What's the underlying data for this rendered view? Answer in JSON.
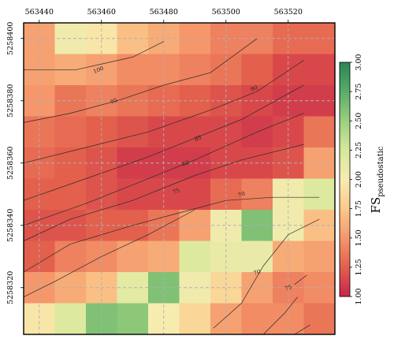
{
  "chart_data": {
    "type": "heatmap",
    "title": "",
    "xlabel": "",
    "ylabel": "",
    "x_ticks": [
      "563440",
      "563460",
      "563480",
      "563500",
      "563520"
    ],
    "x_tick_values": [
      563440,
      563460,
      563480,
      563500,
      563520
    ],
    "y_ticks": [
      "5258320",
      "5258340",
      "5258360",
      "5258380",
      "5258400"
    ],
    "y_tick_values": [
      5258320,
      5258340,
      5258360,
      5258380,
      5258400
    ],
    "xlim": [
      563435,
      563535
    ],
    "ylim": [
      5258305,
      5258405
    ],
    "cell_x_edges": [
      563435,
      563445,
      563455,
      563465,
      563475,
      563485,
      563495,
      563505,
      563515,
      563525,
      563535
    ],
    "cell_y_edges": [
      5258405,
      5258395,
      5258385,
      5258375,
      5258365,
      5258355,
      5258345,
      5258335,
      5258325,
      5258315,
      5258305
    ],
    "grid": true,
    "colorbar": {
      "label": "FS",
      "label_subscript": "pseudostatic",
      "range": [
        1.0,
        3.0
      ],
      "ticks": [
        "1.00",
        "1.25",
        "1.50",
        "1.75",
        "2.00",
        "2.25",
        "2.50",
        "2.75",
        "3.00"
      ],
      "colormap": [
        "#c7254a",
        "#e3604c",
        "#f5976b",
        "#fbc98a",
        "#f7ecb0",
        "#d6e89b",
        "#9bcf7d",
        "#57ad6a",
        "#2a8556"
      ]
    },
    "values": [
      [
        1.55,
        2.05,
        1.95,
        1.7,
        1.6,
        1.5,
        1.4,
        1.4,
        1.3,
        1.3
      ],
      [
        1.55,
        1.6,
        1.55,
        1.45,
        1.45,
        1.4,
        1.35,
        1.25,
        1.15,
        1.15
      ],
      [
        1.5,
        1.35,
        1.4,
        1.35,
        1.3,
        1.25,
        1.2,
        1.15,
        1.1,
        1.1
      ],
      [
        1.35,
        1.3,
        1.25,
        1.2,
        1.15,
        1.15,
        1.15,
        1.1,
        1.15,
        1.35
      ],
      [
        1.3,
        1.25,
        1.2,
        1.1,
        1.1,
        1.1,
        1.15,
        1.15,
        1.2,
        1.55
      ],
      [
        1.25,
        1.25,
        1.2,
        1.15,
        1.15,
        1.15,
        1.3,
        1.4,
        2.05,
        2.2
      ],
      [
        1.2,
        1.2,
        1.25,
        1.25,
        1.35,
        1.55,
        2.05,
        2.6,
        2.05,
        1.7
      ],
      [
        1.25,
        1.4,
        1.45,
        1.55,
        1.6,
        2.2,
        2.1,
        2.1,
        1.6,
        1.55
      ],
      [
        1.5,
        1.6,
        1.7,
        2.15,
        2.6,
        2.05,
        1.85,
        1.55,
        1.4,
        1.45
      ],
      [
        1.95,
        2.2,
        2.6,
        2.55,
        2.0,
        1.85,
        1.55,
        1.45,
        1.45,
        1.35
      ]
    ],
    "contours": [
      {
        "label": "100",
        "points": [
          [
            563435,
            5258390
          ],
          [
            563452,
            5258390
          ],
          [
            563470,
            5258394
          ],
          [
            563480,
            5258399
          ]
        ],
        "label_at": [
          563459,
          5258390
        ]
      },
      {
        "label": "95",
        "points": [
          [
            563435,
            5258373
          ],
          [
            563450,
            5258376
          ],
          [
            563465,
            5258380
          ],
          [
            563480,
            5258385
          ],
          [
            563495,
            5258389
          ],
          [
            563510,
            5258400
          ]
        ],
        "label_at": [
          563464,
          5258380
        ]
      },
      {
        "label": "90",
        "points": [
          [
            563435,
            5258360
          ],
          [
            563455,
            5258365
          ],
          [
            563475,
            5258370
          ],
          [
            563495,
            5258377
          ],
          [
            563510,
            5258383
          ],
          [
            563525,
            5258393
          ]
        ],
        "label_at": [
          563509,
          5258384
        ]
      },
      {
        "label": "85",
        "points": [
          [
            563435,
            5258348
          ],
          [
            563455,
            5258355
          ],
          [
            563475,
            5258362
          ],
          [
            563490,
            5258368
          ],
          [
            563505,
            5258374
          ],
          [
            563525,
            5258385
          ]
        ],
        "label_at": [
          563491,
          5258368
        ]
      },
      {
        "label": "80",
        "points": [
          [
            563435,
            5258340
          ],
          [
            563455,
            5258347
          ],
          [
            563470,
            5258353
          ],
          [
            563490,
            5258361
          ],
          [
            563510,
            5258370
          ],
          [
            563525,
            5258376
          ]
        ],
        "label_at": [
          563487,
          5258360
        ]
      },
      {
        "label": "75",
        "points": [
          [
            563435,
            5258335
          ],
          [
            563450,
            5258342
          ],
          [
            563470,
            5258348
          ],
          [
            563490,
            5258356
          ],
          [
            563505,
            5258361
          ],
          [
            563525,
            5258366
          ]
        ],
        "label_at": [
          563484,
          5258351
        ]
      },
      {
        "label": "70",
        "points": [
          [
            563435,
            5258325
          ],
          [
            563450,
            5258334
          ],
          [
            563470,
            5258340
          ],
          [
            563485,
            5258344
          ],
          [
            563500,
            5258348
          ],
          [
            563515,
            5258349
          ],
          [
            563530,
            5258349
          ]
        ],
        "label_at": [
          563505,
          5258350
        ]
      },
      {
        "label": "70",
        "points": [
          [
            563496,
            5258307
          ],
          [
            563505,
            5258315
          ],
          [
            563512,
            5258327
          ],
          [
            563520,
            5258337
          ],
          [
            563530,
            5258342
          ]
        ],
        "label_at": [
          563510,
          5258325
        ]
      },
      {
        "label": "75",
        "points": [
          [
            563435,
            5258317
          ],
          [
            563445,
            5258322
          ],
          [
            563460,
            5258330
          ],
          [
            563475,
            5258337
          ],
          [
            563490,
            5258345
          ]
        ],
        "label_at": [
          563520,
          5258320
        ]
      },
      {
        "label": "",
        "points": [
          [
            563522,
            5258321
          ],
          [
            563526,
            5258324
          ]
        ],
        "label_at": null
      },
      {
        "label": "",
        "points": [
          [
            563522,
            5258305
          ],
          [
            563527,
            5258308
          ]
        ],
        "label_at": null
      },
      {
        "label": "",
        "points": [
          [
            563512,
            5258305
          ],
          [
            563519,
            5258312
          ],
          [
            563523,
            5258317
          ]
        ],
        "label_at": null
      }
    ]
  }
}
